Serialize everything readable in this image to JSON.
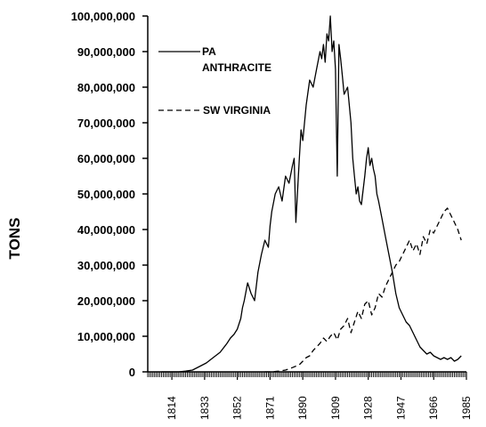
{
  "chart_data": {
    "type": "line",
    "title": "",
    "xlabel": "",
    "ylabel": "TONS",
    "xlim": [
      1800,
      1985
    ],
    "ylim": [
      0,
      100000000
    ],
    "x_ticks": [
      "1814",
      "1833",
      "1852",
      "1871",
      "1890",
      "1909",
      "1928",
      "1947",
      "1966",
      "1985"
    ],
    "y_ticks": [
      "0",
      "10,000,000",
      "20,000,000",
      "30,000,000",
      "40,000,000",
      "50,000,000",
      "60,000,000",
      "70,000,000",
      "80,000,000",
      "90,000,000",
      "100,000,000"
    ],
    "grid": false,
    "legend_position": "top-left",
    "series": [
      {
        "name": "PA ANTHRACITE",
        "style": "solid",
        "x": [
          1808,
          1814,
          1818,
          1822,
          1826,
          1830,
          1834,
          1838,
          1842,
          1846,
          1848,
          1850,
          1852,
          1854,
          1855,
          1856,
          1858,
          1860,
          1862,
          1864,
          1866,
          1868,
          1870,
          1871,
          1872,
          1874,
          1876,
          1878,
          1880,
          1882,
          1884,
          1885,
          1886,
          1888,
          1889,
          1890,
          1892,
          1894,
          1896,
          1898,
          1900,
          1901,
          1902,
          1903,
          1904,
          1905,
          1906,
          1907,
          1908,
          1909,
          1910,
          1911,
          1912,
          1913,
          1914,
          1916,
          1918,
          1919,
          1920,
          1921,
          1922,
          1923,
          1924,
          1926,
          1927,
          1928,
          1929,
          1930,
          1931,
          1932,
          1933,
          1934,
          1936,
          1938,
          1940,
          1942,
          1944,
          1946,
          1948,
          1950,
          1952,
          1954,
          1956,
          1958,
          1960,
          1962,
          1964,
          1966,
          1968,
          1970,
          1972,
          1974,
          1976,
          1978,
          1980,
          1982
        ],
        "y": [
          0,
          0,
          0,
          200000,
          500000,
          1500000,
          2500000,
          4000000,
          5500000,
          8000000,
          9500000,
          10500000,
          12000000,
          15000000,
          18000000,
          20000000,
          25000000,
          22000000,
          20000000,
          28000000,
          33000000,
          37000000,
          35000000,
          41000000,
          45000000,
          50000000,
          52000000,
          48000000,
          55000000,
          53000000,
          58000000,
          60000000,
          42000000,
          60000000,
          68000000,
          65000000,
          75000000,
          82000000,
          80000000,
          85000000,
          90000000,
          88000000,
          92000000,
          87000000,
          95000000,
          93000000,
          100000000,
          90000000,
          93000000,
          85000000,
          55000000,
          92000000,
          88000000,
          83000000,
          78000000,
          80000000,
          70000000,
          60000000,
          55000000,
          50000000,
          52000000,
          48000000,
          47000000,
          55000000,
          60000000,
          63000000,
          58000000,
          60000000,
          57000000,
          55000000,
          50000000,
          48000000,
          43000000,
          38000000,
          33000000,
          28000000,
          22000000,
          18000000,
          16000000,
          14000000,
          13000000,
          11000000,
          9000000,
          7000000,
          6000000,
          5000000,
          5500000,
          4500000,
          4000000,
          3500000,
          4000000,
          3500000,
          4000000,
          3000000,
          3500000,
          4500000
        ]
      },
      {
        "name": "SW VIRGINIA",
        "style": "dashed",
        "x": [
          1868,
          1872,
          1876,
          1880,
          1884,
          1888,
          1890,
          1892,
          1894,
          1896,
          1898,
          1900,
          1902,
          1904,
          1906,
          1908,
          1910,
          1912,
          1914,
          1916,
          1918,
          1920,
          1922,
          1924,
          1926,
          1928,
          1930,
          1932,
          1934,
          1936,
          1938,
          1940,
          1942,
          1944,
          1946,
          1948,
          1950,
          1952,
          1954,
          1956,
          1958,
          1960,
          1962,
          1964,
          1966,
          1968,
          1970,
          1972,
          1974,
          1976,
          1978,
          1980,
          1982
        ],
        "y": [
          0,
          0,
          200000,
          500000,
          1200000,
          2000000,
          3000000,
          4000000,
          4500000,
          6000000,
          7000000,
          8000000,
          9500000,
          8500000,
          10000000,
          11000000,
          9000000,
          12000000,
          13000000,
          15000000,
          11000000,
          14000000,
          17000000,
          15000000,
          19000000,
          20000000,
          16000000,
          18000000,
          22000000,
          21000000,
          24000000,
          26000000,
          28000000,
          30000000,
          31000000,
          33000000,
          35000000,
          37000000,
          34000000,
          36000000,
          33000000,
          38000000,
          36000000,
          40000000,
          39000000,
          41000000,
          43000000,
          45000000,
          46000000,
          44000000,
          42000000,
          40000000,
          37000000
        ]
      }
    ]
  }
}
